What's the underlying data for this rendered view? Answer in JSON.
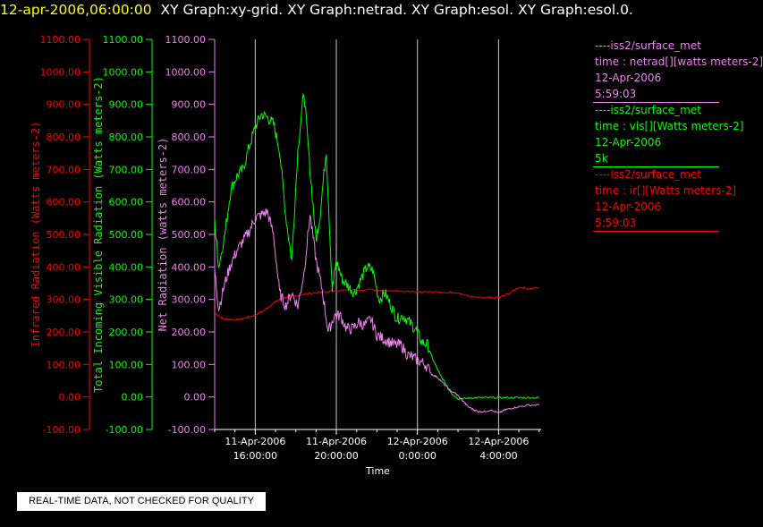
{
  "header": {
    "timestamp": "12-apr-2006,06:00:00",
    "titles": "XY Graph:xy-grid.  XY Graph:netrad.  XY Graph:esol.  XY Graph:esol.0."
  },
  "notice": "REAL-TIME DATA, NOT CHECKED FOR QUALITY",
  "legend": [
    {
      "source": "----iss2/surface_met",
      "series": "time : netrad[][watts meters-2]",
      "date": "12-Apr-2006",
      "extra": "5:59:03",
      "color": "#ee82ee"
    },
    {
      "source": "----iss2/surface_met",
      "series": "time : vis[][Watts meters-2]",
      "date": "12-Apr-2006",
      "extra": "5k",
      "color": "#00ff00"
    },
    {
      "source": "----iss2/surface_met",
      "series": "time : ir[][Watts meters-2]",
      "date": "12-Apr-2006",
      "extra": "5:59:03",
      "color": "#ff0000"
    }
  ],
  "chart_data": {
    "type": "line",
    "xlabel": "Time",
    "x_ticks": [
      {
        "date": "11-Apr-2006",
        "time": "16:00:00",
        "hours": 16
      },
      {
        "date": "11-Apr-2006",
        "time": "20:00:00",
        "hours": 20
      },
      {
        "date": "12-Apr-2006",
        "time": "0:00:00",
        "hours": 24
      },
      {
        "date": "12-Apr-2006",
        "time": "4:00:00",
        "hours": 28
      }
    ],
    "xlim_hours": [
      14.0,
      30.1
    ],
    "ylim": [
      -100,
      1100
    ],
    "ytick_labels": [
      "-100.00",
      "0.00",
      "100.00",
      "200.00",
      "300.00",
      "400.00",
      "500.00",
      "600.00",
      "700.00",
      "800.00",
      "900.00",
      "1000.00",
      "1100.00"
    ],
    "axes": [
      {
        "label": "Infrared Radiation (Watts meters-2)",
        "color": "#ff0000"
      },
      {
        "label": "Total Incoming Visible Radiation (Watts meters-2)",
        "color": "#00ff00"
      },
      {
        "label": "Net Radiation (watts meters-2)",
        "color": "#ee82ee"
      }
    ],
    "vertical_grid": true,
    "series": [
      {
        "name": "ir",
        "color": "#ff0000",
        "x": [
          14.0,
          14.4,
          14.8,
          15.2,
          15.6,
          16.0,
          16.4,
          16.8,
          17.2,
          17.6,
          18.0,
          18.6,
          19.2,
          20.0,
          21.0,
          22.0,
          23.0,
          24.0,
          25.0,
          26.0,
          26.5,
          27.0,
          27.5,
          28.0,
          28.5,
          29.0,
          29.5,
          30.0
        ],
        "y": [
          260,
          240,
          238,
          238,
          245,
          252,
          265,
          285,
          300,
          308,
          312,
          318,
          322,
          327,
          330,
          330,
          327,
          325,
          322,
          322,
          310,
          305,
          305,
          305,
          318,
          338,
          333,
          336
        ]
      },
      {
        "name": "vis",
        "color": "#00ff00",
        "x": [
          14.0,
          14.2,
          14.5,
          14.8,
          15.1,
          15.4,
          15.7,
          16.0,
          16.3,
          16.6,
          16.9,
          17.2,
          17.5,
          17.8,
          18.1,
          18.4,
          18.7,
          19.0,
          19.2,
          19.5,
          19.8,
          20.0,
          20.3,
          20.6,
          20.9,
          21.2,
          21.5,
          21.8,
          22.1,
          22.4,
          22.7,
          23.0,
          23.3,
          23.6,
          23.9,
          24.2,
          24.5,
          24.8,
          25.1,
          25.4,
          25.7,
          26.0,
          26.3,
          26.6,
          27.0,
          27.5,
          28.0,
          28.5,
          29.0,
          29.5,
          30.0
        ],
        "y": [
          540,
          400,
          500,
          640,
          680,
          700,
          770,
          830,
          870,
          860,
          840,
          760,
          560,
          420,
          760,
          940,
          700,
          480,
          560,
          760,
          330,
          420,
          360,
          340,
          320,
          360,
          400,
          390,
          300,
          320,
          280,
          240,
          250,
          230,
          210,
          170,
          160,
          110,
          70,
          40,
          10,
          -5,
          -5,
          -3,
          -2,
          -2,
          -2,
          -2,
          -2,
          -2,
          -2
        ]
      },
      {
        "name": "netrad",
        "color": "#ee82ee",
        "x": [
          14.0,
          14.2,
          14.5,
          14.8,
          15.1,
          15.4,
          15.7,
          16.0,
          16.3,
          16.6,
          16.9,
          17.2,
          17.5,
          17.8,
          18.1,
          18.4,
          18.7,
          19.0,
          19.3,
          19.6,
          19.9,
          20.2,
          20.5,
          20.8,
          21.1,
          21.4,
          21.7,
          22.0,
          22.3,
          22.6,
          22.9,
          23.2,
          23.5,
          23.8,
          24.1,
          24.4,
          24.7,
          25.0,
          25.3,
          25.6,
          25.9,
          26.2,
          26.5,
          26.8,
          27.0,
          27.3,
          27.6,
          28.0,
          28.3,
          28.6,
          29.0,
          29.5,
          30.0
        ],
        "y": [
          390,
          270,
          350,
          410,
          450,
          480,
          510,
          550,
          560,
          570,
          500,
          320,
          280,
          320,
          280,
          380,
          560,
          420,
          330,
          200,
          250,
          250,
          210,
          210,
          230,
          220,
          240,
          190,
          180,
          170,
          160,
          160,
          130,
          120,
          110,
          100,
          70,
          60,
          40,
          20,
          10,
          -10,
          -30,
          -40,
          -45,
          -45,
          -40,
          -50,
          -40,
          -35,
          -30,
          -25,
          -25
        ]
      }
    ]
  }
}
